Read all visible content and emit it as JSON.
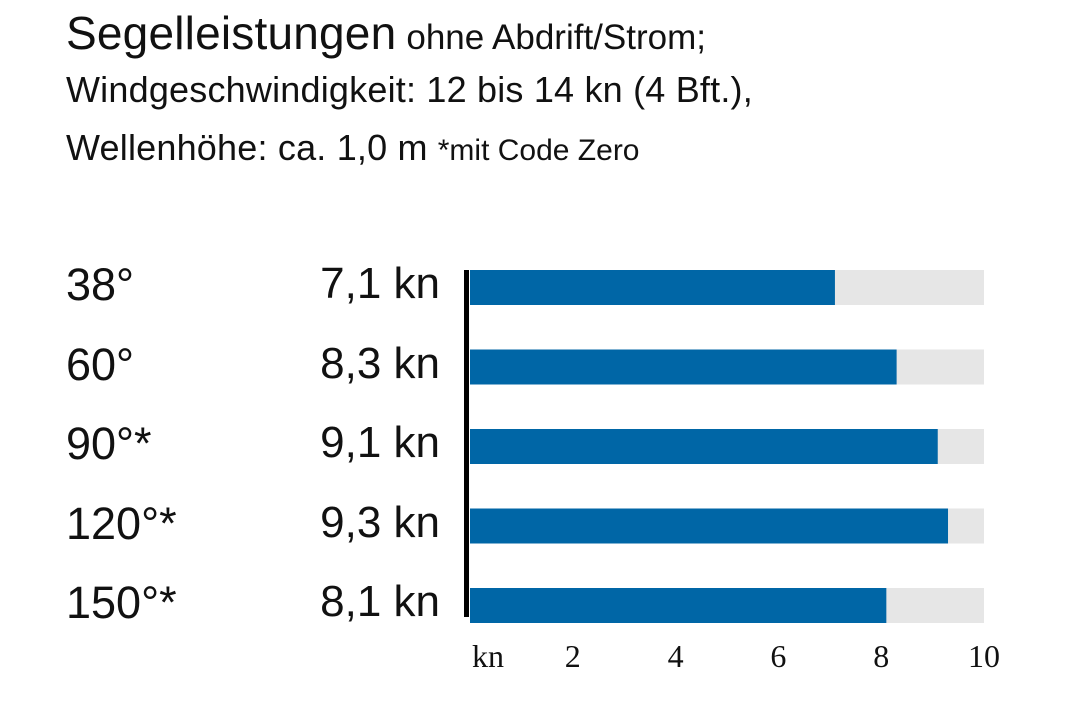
{
  "header": {
    "title_main": "Segelleistungen",
    "title_sub": "ohne Abdrift/Strom;",
    "title_line2": "Windgeschwindigkeit: 12 bis 14 kn (4 Bft.),",
    "title_line3": "Wellenhöhe: ca. 1,0 m",
    "title_note": "*mit Code Zero"
  },
  "chart_data": {
    "type": "bar",
    "orientation": "horizontal",
    "categories": [
      "38°",
      "60°",
      "90°*",
      "120°*",
      "150°*"
    ],
    "values": [
      7.1,
      8.3,
      9.1,
      9.3,
      8.1
    ],
    "value_labels": [
      "7,1 kn",
      "8,3 kn",
      "9,1 kn",
      "9,3 kn",
      "8,1 kn"
    ],
    "unit": "kn",
    "xlabel": "kn",
    "xlim": [
      0,
      10
    ],
    "xticks": [
      2,
      4,
      6,
      8,
      10
    ],
    "colors": {
      "bar": "#0066a6",
      "track": "#e6e6e6",
      "axis": "#000000"
    }
  }
}
